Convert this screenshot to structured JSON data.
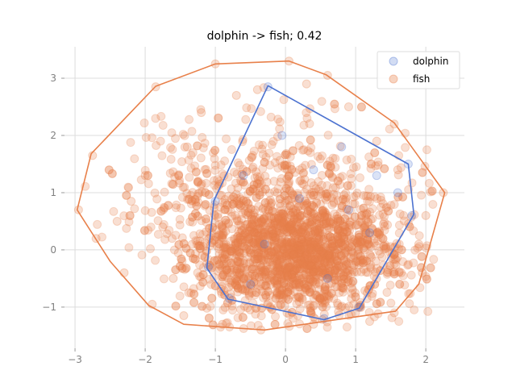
{
  "chart_data": {
    "type": "scatter",
    "title": "dolphin -> fish; 0.42",
    "xlabel": "",
    "ylabel": "",
    "xlim": [
      -3.15,
      2.55
    ],
    "ylim": [
      -1.72,
      3.55
    ],
    "xticks": [
      -3,
      -2,
      -1,
      0,
      1,
      2
    ],
    "yticks": [
      -1,
      0,
      1,
      2,
      3
    ],
    "xtick_labels": [
      "−3",
      "−2",
      "−1",
      "0",
      "1",
      "2"
    ],
    "ytick_labels": [
      "−1",
      "0",
      "1",
      "2",
      "3"
    ],
    "grid": true,
    "legend_position": "top-right",
    "series": [
      {
        "name": "dolphin",
        "color": "#4c72d0",
        "alpha": 0.2,
        "points": [
          [
            -0.25,
            2.85
          ],
          [
            1.75,
            1.5
          ],
          [
            1.8,
            0.6
          ],
          [
            0.55,
            -1.2
          ],
          [
            1.05,
            -1.0
          ],
          [
            -0.8,
            -0.85
          ],
          [
            -1.1,
            -0.3
          ],
          [
            -1.0,
            0.85
          ],
          [
            -0.05,
            2.0
          ],
          [
            0.8,
            1.8
          ],
          [
            1.3,
            1.3
          ],
          [
            1.6,
            1.0
          ],
          [
            0.2,
            0.9
          ],
          [
            -0.3,
            0.1
          ],
          [
            0.6,
            -0.5
          ],
          [
            1.2,
            0.3
          ],
          [
            0.4,
            1.4
          ],
          [
            -0.6,
            1.3
          ],
          [
            0.9,
            0.7
          ],
          [
            -0.5,
            -0.6
          ]
        ],
        "hull": [
          [
            -0.25,
            2.87
          ],
          [
            1.75,
            1.5
          ],
          [
            1.83,
            0.62
          ],
          [
            1.05,
            -1.02
          ],
          [
            0.55,
            -1.22
          ],
          [
            -0.82,
            -0.86
          ],
          [
            -1.12,
            -0.32
          ],
          [
            -1.02,
            0.86
          ]
        ]
      },
      {
        "name": "fish",
        "color": "#e8804a",
        "alpha": 0.25,
        "points": [
          [
            -2.95,
            0.7
          ],
          [
            -2.75,
            1.65
          ],
          [
            -2.7,
            0.2
          ],
          [
            -1.85,
            2.85
          ],
          [
            -1.0,
            3.25
          ],
          [
            0.05,
            3.3
          ],
          [
            0.6,
            3.05
          ],
          [
            1.55,
            2.2
          ],
          [
            2.25,
            1.0
          ],
          [
            1.9,
            0.1
          ],
          [
            1.55,
            -1.1
          ],
          [
            -0.35,
            -1.4
          ],
          [
            -1.45,
            -1.15
          ],
          [
            -1.9,
            -0.95
          ],
          [
            -2.3,
            -0.4
          ],
          [
            -2.4,
            0.5
          ],
          [
            -2.2,
            0.85
          ],
          [
            -2.0,
            1.3
          ],
          [
            -1.75,
            0.4
          ],
          [
            -1.6,
            -0.5
          ],
          [
            -1.4,
            1.8
          ],
          [
            -1.2,
            2.4
          ],
          [
            -0.7,
            2.7
          ],
          [
            -0.4,
            2.8
          ],
          [
            0.3,
            2.9
          ],
          [
            0.9,
            2.5
          ],
          [
            1.3,
            1.9
          ],
          [
            1.6,
            1.4
          ],
          [
            2.0,
            0.6
          ],
          [
            1.95,
            -0.4
          ],
          [
            1.2,
            -1.25
          ],
          [
            0.4,
            -1.3
          ],
          [
            -0.9,
            -1.3
          ]
        ],
        "hull": [
          [
            -2.97,
            0.7
          ],
          [
            -2.77,
            1.68
          ],
          [
            -1.85,
            2.86
          ],
          [
            -1.0,
            3.25
          ],
          [
            0.05,
            3.3
          ],
          [
            0.58,
            3.06
          ],
          [
            1.55,
            2.22
          ],
          [
            2.27,
            1.0
          ],
          [
            1.9,
            -0.6
          ],
          [
            1.57,
            -1.07
          ],
          [
            -0.3,
            -1.4
          ],
          [
            -1.45,
            -1.3
          ],
          [
            -1.95,
            -0.97
          ],
          [
            -2.5,
            -0.2
          ]
        ]
      }
    ]
  }
}
